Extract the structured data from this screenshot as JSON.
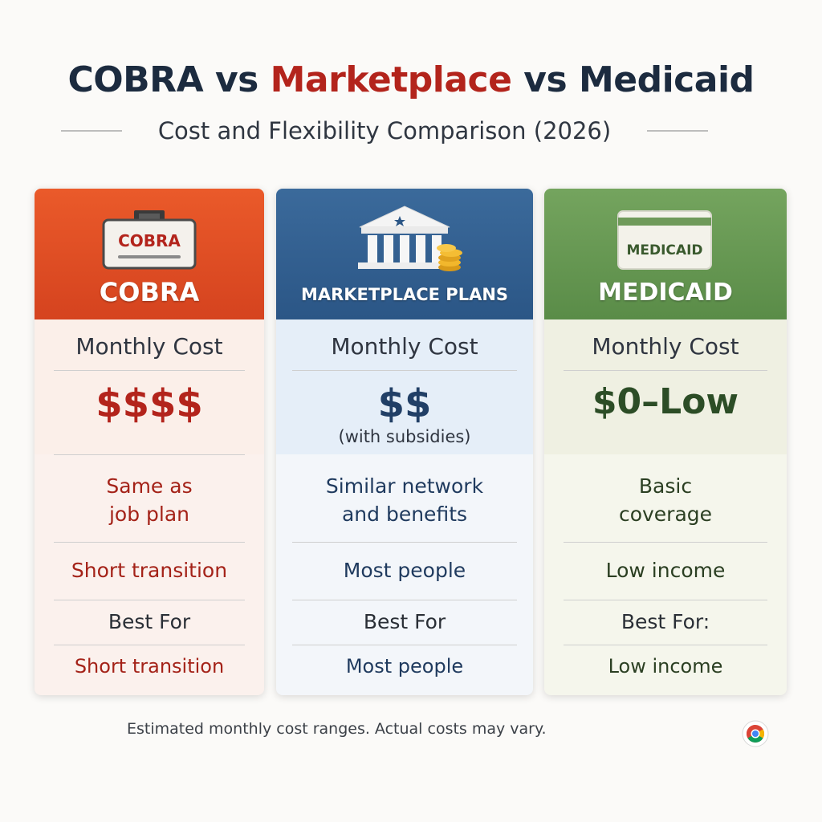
{
  "title": {
    "part1": "COBRA vs ",
    "part2": "Marketplace",
    "part3": " vs Medicaid"
  },
  "subtitle": "Cost and Flexibility Comparison (2026)",
  "colors": {
    "cobra": "#d5431f",
    "marketplace": "#2b5686",
    "medicaid": "#5a8c48",
    "title_dark": "#1c2b3f",
    "title_red": "#b3241c"
  },
  "cards": [
    {
      "icon": "cobra-badge-icon",
      "badge_text": "COBRA",
      "heading": "COBRA",
      "cost_label": "Monthly Cost",
      "cost_value": "$$$$",
      "cost_note": "",
      "description": [
        "Same as",
        "job plan"
      ],
      "audience_1": "Short transition",
      "best_for": "Best For",
      "audience_2": "Short transition"
    },
    {
      "icon": "government-building-icon",
      "badge_text": "",
      "heading": "MARKETPLACE PLANS",
      "cost_label": "Monthly Cost",
      "cost_value": "$$",
      "cost_note": "(with subsidies)",
      "description": [
        "Similar network",
        "and benefits"
      ],
      "audience_1": "Most people",
      "best_for": "Best For",
      "audience_2": "Most people"
    },
    {
      "icon": "medicaid-card-icon",
      "badge_text": "MEDICAID",
      "heading": "MEDICAID",
      "cost_label": "Monthly Cost",
      "cost_value": "$0–Low",
      "cost_note": "",
      "description": [
        "Basic",
        "coverage"
      ],
      "audience_1": "Low income",
      "best_for": "Best For:",
      "audience_2": "Low income"
    }
  ],
  "footnote": "Estimated monthly cost ranges. Actual costs may vary.",
  "corner_icon": "chrome-logo-icon"
}
